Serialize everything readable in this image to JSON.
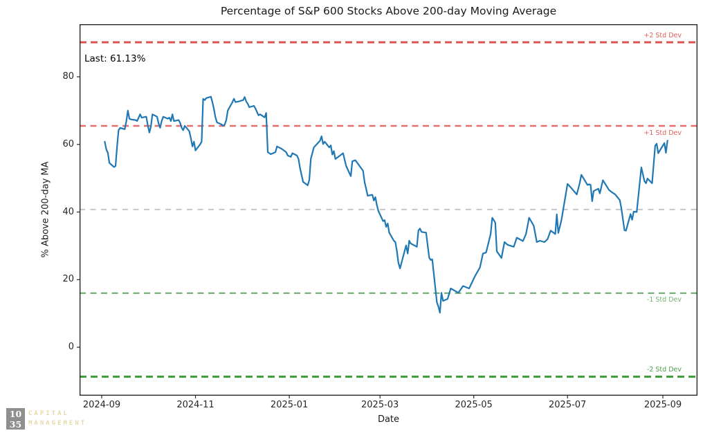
{
  "chart_data": {
    "type": "line",
    "title": "Percentage of S&P 600 Stocks Above 200-day Moving Average",
    "xlabel": "Date",
    "ylabel": "% Above 200-day MA",
    "annotation": "Last: 61.13%",
    "last_value": 61.13,
    "x_ticks": [
      "2024-09",
      "2024-11",
      "2025-01",
      "2025-03",
      "2025-05",
      "2025-07",
      "2025-09"
    ],
    "y_ticks": [
      0,
      20,
      40,
      60,
      80
    ],
    "ylim": [
      -14.3,
      95.5
    ],
    "xlim": [
      "2024-09-01",
      "2025-09-10"
    ],
    "grid": false,
    "legend": "none",
    "series_color": "#1f77b4",
    "reference_lines": [
      {
        "label": "+2 Std Dev",
        "value": 90.21,
        "color": "#db5350",
        "label_color": "#e2605c",
        "width": 3,
        "dash": "10 6",
        "label_position": "above"
      },
      {
        "label": "+1 Std Dev",
        "value": 65.47,
        "color": "#e66f6c",
        "label_color": "#e2605c",
        "width": 2.4,
        "dash": "9 6.5",
        "label_position": "below"
      },
      {
        "label": "",
        "value": 40.74,
        "color": "#c6c6c6",
        "label_color": "",
        "width": 2,
        "dash": "8 7.5",
        "label_position": "none"
      },
      {
        "label": "-1 Std Dev",
        "value": 16.01,
        "color": "#6cae6c",
        "label_color": "#73b273",
        "width": 2.2,
        "dash": "9 6.5",
        "label_position": "below"
      },
      {
        "label": "-2 Std Dev",
        "value": -8.72,
        "color": "#3a9a3a",
        "label_color": "#4a9d4a",
        "width": 3,
        "dash": "10 6",
        "label_position": "above"
      }
    ],
    "series": [
      {
        "name": "% Above 200-day MA",
        "x": [
          "2024-09-03",
          "2024-09-04",
          "2024-09-05",
          "2024-09-06",
          "2024-09-09",
          "2024-09-10",
          "2024-09-11",
          "2024-09-12",
          "2024-09-13",
          "2024-09-16",
          "2024-09-17",
          "2024-09-18",
          "2024-09-19",
          "2024-09-20",
          "2024-09-23",
          "2024-09-24",
          "2024-09-26",
          "2024-09-27",
          "2024-09-30",
          "2024-10-01",
          "2024-10-02",
          "2024-10-03",
          "2024-10-04",
          "2024-10-07",
          "2024-10-08",
          "2024-10-09",
          "2024-10-10",
          "2024-10-11",
          "2024-10-14",
          "2024-10-15",
          "2024-10-16",
          "2024-10-17",
          "2024-10-18",
          "2024-10-21",
          "2024-10-22",
          "2024-10-23",
          "2024-10-24",
          "2024-10-25",
          "2024-10-28",
          "2024-10-29",
          "2024-10-30",
          "2024-10-31",
          "2024-11-01",
          "2024-11-04",
          "2024-11-05",
          "2024-11-06",
          "2024-11-07",
          "2024-11-08",
          "2024-11-11",
          "2024-11-12",
          "2024-11-13",
          "2024-11-14",
          "2024-11-15",
          "2024-11-18",
          "2024-11-19",
          "2024-11-20",
          "2024-11-21",
          "2024-11-22",
          "2024-11-25",
          "2024-11-26",
          "2024-11-27",
          "2024-11-29",
          "2024-12-02",
          "2024-12-03",
          "2024-12-04",
          "2024-12-05",
          "2024-12-06",
          "2024-12-09",
          "2024-12-10",
          "2024-12-11",
          "2024-12-12",
          "2024-12-13",
          "2024-12-16",
          "2024-12-17",
          "2024-12-18",
          "2024-12-19",
          "2024-12-20",
          "2024-12-23",
          "2024-12-24",
          "2024-12-27",
          "2024-12-30",
          "2024-12-31",
          "2025-01-02",
          "2025-01-03",
          "2025-01-06",
          "2025-01-07",
          "2025-01-08",
          "2025-01-10",
          "2025-01-13",
          "2025-01-14",
          "2025-01-15",
          "2025-01-17",
          "2025-01-21",
          "2025-01-22",
          "2025-01-23",
          "2025-01-24",
          "2025-01-27",
          "2025-01-28",
          "2025-01-29",
          "2025-01-30",
          "2025-01-31",
          "2025-02-03",
          "2025-02-05",
          "2025-02-07",
          "2025-02-10",
          "2025-02-11",
          "2025-02-13",
          "2025-02-18",
          "2025-02-19",
          "2025-02-21",
          "2025-02-24",
          "2025-02-25",
          "2025-02-26",
          "2025-02-27",
          "2025-02-28",
          "2025-03-03",
          "2025-03-04",
          "2025-03-05",
          "2025-03-06",
          "2025-03-07",
          "2025-03-10",
          "2025-03-11",
          "2025-03-12",
          "2025-03-13",
          "2025-03-14",
          "2025-03-17",
          "2025-03-18",
          "2025-03-19",
          "2025-03-20",
          "2025-03-21",
          "2025-03-25",
          "2025-03-26",
          "2025-03-27",
          "2025-03-28",
          "2025-03-31",
          "2025-04-02",
          "2025-04-03",
          "2025-04-04",
          "2025-04-07",
          "2025-04-08",
          "2025-04-09",
          "2025-04-10",
          "2025-04-11",
          "2025-04-14",
          "2025-04-16",
          "2025-04-21",
          "2025-04-24",
          "2025-04-28",
          "2025-05-02",
          "2025-05-05",
          "2025-05-07",
          "2025-05-09",
          "2025-05-12",
          "2025-05-13",
          "2025-05-14",
          "2025-05-15",
          "2025-05-16",
          "2025-05-19",
          "2025-05-21",
          "2025-05-23",
          "2025-05-27",
          "2025-05-29",
          "2025-06-02",
          "2025-06-04",
          "2025-06-06",
          "2025-06-09",
          "2025-06-11",
          "2025-06-13",
          "2025-06-16",
          "2025-06-18",
          "2025-06-20",
          "2025-06-23",
          "2025-06-24",
          "2025-06-25",
          "2025-06-27",
          "2025-07-01",
          "2025-07-03",
          "2025-07-07",
          "2025-07-09",
          "2025-07-10",
          "2025-07-14",
          "2025-07-15",
          "2025-07-16",
          "2025-07-17",
          "2025-07-18",
          "2025-07-21",
          "2025-07-22",
          "2025-07-24",
          "2025-07-28",
          "2025-07-30",
          "2025-08-01",
          "2025-08-04",
          "2025-08-05",
          "2025-08-07",
          "2025-08-08",
          "2025-08-11",
          "2025-08-12",
          "2025-08-13",
          "2025-08-15",
          "2025-08-18",
          "2025-08-20",
          "2025-08-21",
          "2025-08-22",
          "2025-08-25",
          "2025-08-27",
          "2025-08-28",
          "2025-08-29",
          "2025-09-02",
          "2025-09-03",
          "2025-09-04"
        ],
        "values": [
          60.8,
          58.5,
          57.5,
          54.5,
          53.3,
          53.6,
          59.4,
          64.2,
          64.9,
          64.5,
          66.9,
          70.0,
          67.6,
          67.4,
          67.2,
          66.9,
          68.9,
          67.9,
          68.2,
          65.5,
          63.5,
          65.3,
          68.9,
          68.2,
          66.2,
          64.9,
          66.9,
          68.2,
          67.6,
          67.9,
          66.9,
          68.9,
          66.9,
          67.2,
          66.4,
          64.9,
          64.2,
          65.5,
          63.9,
          61.8,
          59.4,
          60.8,
          58.2,
          60.0,
          60.8,
          73.5,
          73.1,
          73.7,
          74.1,
          72.5,
          70.4,
          68.0,
          66.5,
          65.9,
          65.5,
          65.9,
          67.2,
          70.0,
          72.5,
          73.5,
          72.5,
          72.7,
          73.1,
          74.0,
          72.7,
          72.0,
          71.0,
          71.4,
          70.6,
          69.6,
          68.6,
          68.9,
          68.0,
          69.3,
          57.7,
          57.4,
          57.1,
          57.7,
          59.4,
          58.7,
          57.7,
          56.7,
          56.3,
          57.4,
          56.7,
          55.7,
          53.0,
          48.9,
          47.9,
          49.5,
          55.7,
          59.1,
          61.1,
          62.4,
          60.1,
          60.8,
          59.1,
          59.7,
          57.0,
          58.0,
          55.7,
          56.7,
          57.4,
          53.6,
          50.6,
          55.0,
          55.3,
          52.2,
          48.9,
          44.8,
          45.1,
          43.4,
          44.4,
          42.0,
          40.3,
          37.3,
          37.6,
          35.6,
          36.6,
          33.9,
          31.5,
          31.1,
          28.4,
          25.0,
          23.3,
          28.4,
          30.1,
          27.7,
          31.5,
          30.7,
          29.7,
          34.5,
          35.1,
          34.1,
          33.9,
          26.5,
          25.8,
          26.0,
          13.3,
          12.0,
          10.2,
          16.1,
          13.7,
          14.3,
          17.4,
          16.1,
          18.1,
          17.4,
          21.2,
          23.6,
          27.7,
          28.0,
          33.5,
          38.3,
          37.6,
          36.8,
          28.4,
          26.4,
          31.1,
          30.3,
          29.7,
          32.4,
          31.4,
          33.5,
          38.3,
          35.9,
          31.1,
          31.5,
          31.1,
          32.0,
          34.5,
          33.5,
          39.3,
          33.8,
          37.6,
          48.3,
          47.3,
          45.2,
          48.7,
          51.0,
          48.0,
          48.2,
          48.0,
          43.2,
          46.2,
          46.9,
          45.5,
          49.4,
          46.5,
          45.8,
          45.2,
          43.5,
          41.1,
          34.6,
          34.5,
          39.4,
          37.7,
          40.1,
          40.0,
          53.2,
          49.2,
          48.5,
          49.9,
          48.5,
          59.6,
          60.2,
          57.4,
          60.4,
          57.5,
          61.13
        ]
      }
    ]
  },
  "logo": {
    "box_line1": "10",
    "box_line2": "35",
    "word1": "CAPITAL",
    "word2": "MANAGEMENT",
    "box_color": "#8f8f8f",
    "text_color": "#e6d9a8"
  }
}
